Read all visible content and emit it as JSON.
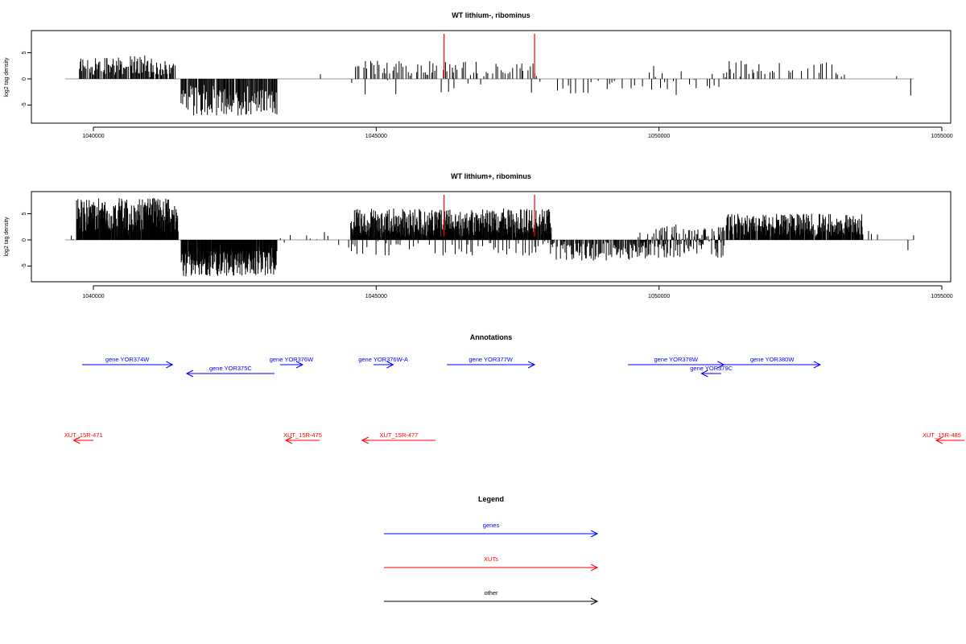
{
  "colors": {
    "gene": "#0000ff",
    "xut": "#ff0000",
    "other": "#000000",
    "marker": "#ff0000",
    "baseline": "#999999",
    "bars": "#000000"
  },
  "chart_data": [
    {
      "type": "bar",
      "title": "WT lithium-, ribominus",
      "ylabel": "log2 tag density",
      "xlim": [
        1039000,
        1055000
      ],
      "ylim": [
        -8,
        8.5
      ],
      "xticks": [
        1040000,
        1045000,
        1050000,
        1055000
      ],
      "yticks": [
        -5,
        0,
        5
      ],
      "baseline_range": [
        1039500,
        1054500
      ],
      "markers": [
        1046200,
        1047800
      ],
      "segments": [
        {
          "start": 1039750,
          "end": 1041450,
          "step": 15,
          "min": 0.8,
          "max": 4.5,
          "density": 0.85
        },
        {
          "start": 1041550,
          "end": 1043250,
          "step": 14,
          "min": -7.0,
          "max": -2.0,
          "density": 0.95
        },
        {
          "start": 1044000,
          "end": 1044500,
          "step": 80,
          "min": 0.5,
          "max": 2.0,
          "density": 0.5
        },
        {
          "start": 1044600,
          "end": 1047900,
          "step": 30,
          "min": 1.0,
          "max": 3.5,
          "density": 0.7
        },
        {
          "start": 1044600,
          "end": 1047900,
          "step": 120,
          "min": -3.0,
          "max": -0.5,
          "density": 0.35
        },
        {
          "start": 1047900,
          "end": 1049700,
          "step": 45,
          "min": -3.0,
          "max": -0.5,
          "density": 0.5
        },
        {
          "start": 1049700,
          "end": 1051200,
          "step": 40,
          "min": -3.5,
          "max": 2.5,
          "density": 0.55
        },
        {
          "start": 1051200,
          "end": 1053300,
          "step": 32,
          "min": 0.8,
          "max": 3.5,
          "density": 0.65
        },
        {
          "start": 1054200,
          "end": 1054200,
          "step": 1,
          "min": 1.2,
          "max": 1.3,
          "density": 1.0
        },
        {
          "start": 1054450,
          "end": 1054450,
          "step": 1,
          "min": -3.2,
          "max": -3.1,
          "density": 1.0
        }
      ]
    },
    {
      "type": "bar",
      "title": "WT lithium+, ribominus",
      "ylabel": "log2 tag density",
      "xlim": [
        1039000,
        1055000
      ],
      "ylim": [
        -8,
        8.5
      ],
      "xticks": [
        1040000,
        1045000,
        1050000,
        1055000
      ],
      "yticks": [
        -5,
        0,
        5
      ],
      "baseline_range": [
        1039500,
        1054500
      ],
      "markers": [
        1046200,
        1047800
      ],
      "segments": [
        {
          "start": 1039600,
          "end": 1039700,
          "step": 40,
          "min": -2.5,
          "max": 1.5,
          "density": 0.8
        },
        {
          "start": 1039700,
          "end": 1041500,
          "step": 7,
          "min": 1.5,
          "max": 8.0,
          "density": 0.95
        },
        {
          "start": 1041550,
          "end": 1043250,
          "step": 7,
          "min": -7.0,
          "max": -2.0,
          "density": 0.95
        },
        {
          "start": 1043300,
          "end": 1044600,
          "step": 60,
          "min": -2.0,
          "max": 2.0,
          "density": 0.5
        },
        {
          "start": 1044550,
          "end": 1048100,
          "step": 6,
          "min": 0.5,
          "max": 6.0,
          "density": 0.9
        },
        {
          "start": 1044550,
          "end": 1048100,
          "step": 40,
          "min": -3.0,
          "max": -0.5,
          "density": 0.55
        },
        {
          "start": 1048100,
          "end": 1049600,
          "step": 14,
          "min": -4.0,
          "max": -0.5,
          "density": 0.8
        },
        {
          "start": 1049600,
          "end": 1051200,
          "step": 10,
          "min": -3.5,
          "max": 3.0,
          "density": 0.85
        },
        {
          "start": 1051200,
          "end": 1053600,
          "step": 8,
          "min": 0.8,
          "max": 5.0,
          "density": 0.9
        },
        {
          "start": 1053600,
          "end": 1053900,
          "step": 50,
          "min": 1.0,
          "max": 2.0,
          "density": 0.7
        },
        {
          "start": 1054400,
          "end": 1054400,
          "step": 1,
          "min": -2.0,
          "max": -1.9,
          "density": 1.0
        },
        {
          "start": 1054500,
          "end": 1054500,
          "step": 1,
          "min": 0.8,
          "max": 0.9,
          "density": 1.0
        }
      ]
    }
  ],
  "annotations": {
    "title": "Annotations",
    "features": [
      {
        "label": "gene YOR374W",
        "start": 1039800,
        "end": 1041400,
        "strand": "+",
        "kind": "gene",
        "row": 0
      },
      {
        "label": "gene YOR375C",
        "start": 1041650,
        "end": 1043200,
        "strand": "-",
        "kind": "gene",
        "row": 1
      },
      {
        "label": "gene YOR376W",
        "start": 1043300,
        "end": 1043700,
        "strand": "+",
        "kind": "gene",
        "row": 0
      },
      {
        "label": "gene YOR376W-A",
        "start": 1044950,
        "end": 1045300,
        "strand": "+",
        "kind": "gene",
        "row": 0
      },
      {
        "label": "gene YOR377W",
        "start": 1046250,
        "end": 1047800,
        "strand": "+",
        "kind": "gene",
        "row": 0
      },
      {
        "label": "gene YOR378W",
        "start": 1049450,
        "end": 1051150,
        "strand": "+",
        "kind": "gene",
        "row": 0
      },
      {
        "label": "gene YOR379C",
        "start": 1050750,
        "end": 1051100,
        "strand": "-",
        "kind": "gene",
        "row": 1
      },
      {
        "label": "gene YOR380W",
        "start": 1051150,
        "end": 1052850,
        "strand": "+",
        "kind": "gene",
        "row": 0
      },
      {
        "label": "XUT_15R-471",
        "start": 1039650,
        "end": 1040000,
        "strand": "-",
        "kind": "xut",
        "row": 2
      },
      {
        "label": "XUT_15R-475",
        "start": 1043400,
        "end": 1044000,
        "strand": "-",
        "kind": "xut",
        "row": 2
      },
      {
        "label": "XUT_15R-477",
        "start": 1044750,
        "end": 1046050,
        "strand": "-",
        "kind": "xut",
        "row": 2
      },
      {
        "label": "XUT_15R-485",
        "start": 1054900,
        "end": 1055400,
        "strand": "-",
        "kind": "xut",
        "row": 2
      }
    ]
  },
  "legend": {
    "title": "Legend",
    "items": [
      {
        "label": "genes",
        "kind": "gene"
      },
      {
        "label": "XUTs",
        "kind": "xut"
      },
      {
        "label": "other",
        "kind": "other"
      }
    ]
  }
}
